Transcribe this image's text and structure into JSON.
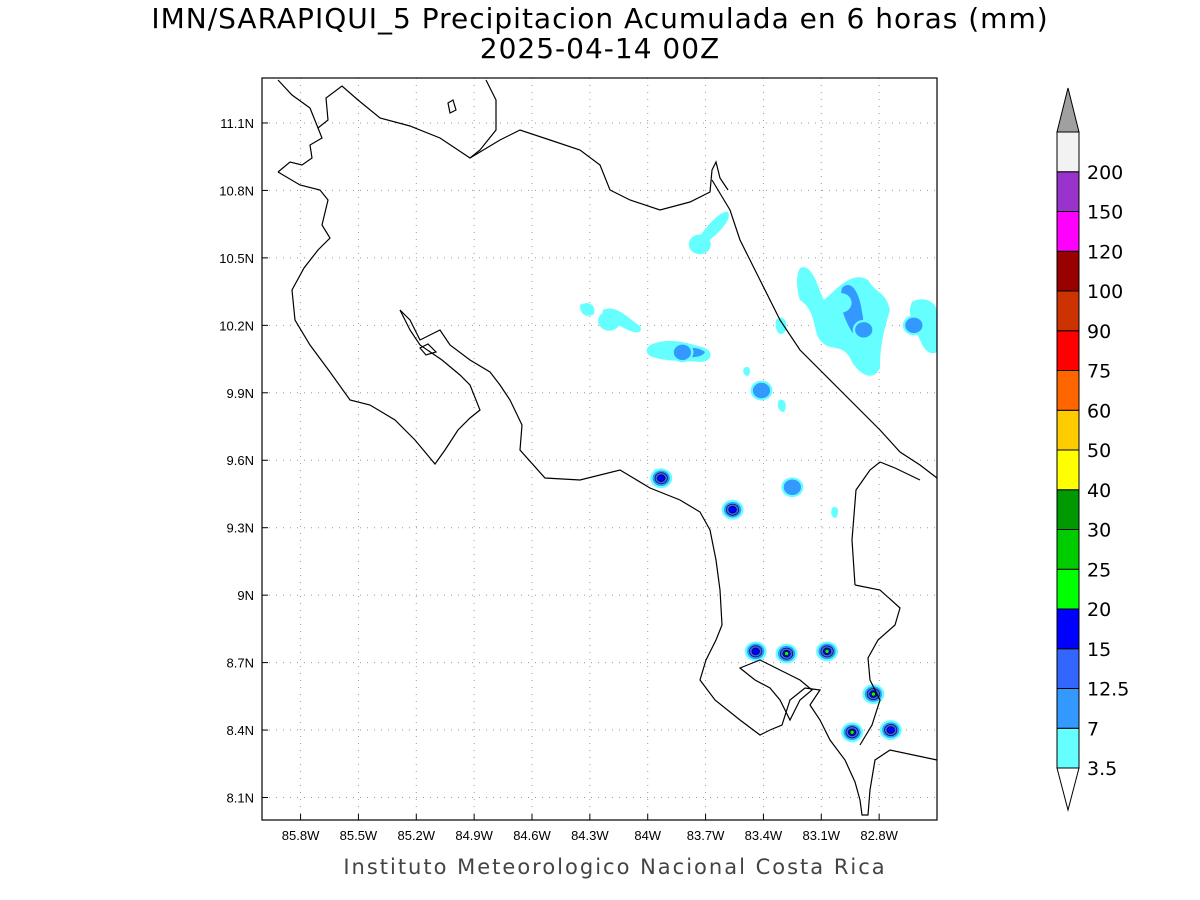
{
  "title": {
    "line1": "IMN/SARAPIQUI_5 Precipitacion Acumulada en 6 horas (mm)",
    "line2": "2025-04-14 00Z"
  },
  "footer": "Instituto Meteorologico Nacional Costa Rica",
  "map": {
    "lon_range": [
      -86.0,
      -82.5
    ],
    "lat_range": [
      8.0,
      11.3
    ],
    "grid": "dotted",
    "x_ticks": [
      {
        "lon": -85.8,
        "label": "85.8W"
      },
      {
        "lon": -85.5,
        "label": "85.5W"
      },
      {
        "lon": -85.2,
        "label": "85.2W"
      },
      {
        "lon": -84.9,
        "label": "84.9W"
      },
      {
        "lon": -84.6,
        "label": "84.6W"
      },
      {
        "lon": -84.3,
        "label": "84.3W"
      },
      {
        "lon": -84.0,
        "label": "84W"
      },
      {
        "lon": -83.7,
        "label": "83.7W"
      },
      {
        "lon": -83.4,
        "label": "83.4W"
      },
      {
        "lon": -83.1,
        "label": "83.1W"
      },
      {
        "lon": -82.8,
        "label": "82.8W"
      }
    ],
    "y_ticks": [
      {
        "lat": 11.1,
        "label": "11.1N"
      },
      {
        "lat": 10.8,
        "label": "10.8N"
      },
      {
        "lat": 10.5,
        "label": "10.5N"
      },
      {
        "lat": 10.2,
        "label": "10.2N"
      },
      {
        "lat": 9.9,
        "label": "9.9N"
      },
      {
        "lat": 9.6,
        "label": "9.6N"
      },
      {
        "lat": 9.3,
        "label": "9.3N"
      },
      {
        "lat": 9.0,
        "label": "9N"
      },
      {
        "lat": 8.7,
        "label": "8.7N"
      },
      {
        "lat": 8.4,
        "label": "8.4N"
      },
      {
        "lat": 8.1,
        "label": "8.1N"
      }
    ]
  },
  "colorbar": {
    "labels": [
      "3.5",
      "7",
      "12.5",
      "15",
      "20",
      "25",
      "30",
      "40",
      "50",
      "60",
      "75",
      "90",
      "100",
      "120",
      "150",
      "200"
    ],
    "colors": [
      "#66ffff",
      "#3399ff",
      "#3366ff",
      "#0000ff",
      "#00ff00",
      "#00cc00",
      "#009900",
      "#ffff00",
      "#ffcc00",
      "#ff6600",
      "#ff0000",
      "#cc3300",
      "#990000",
      "#ff00ff",
      "#9933cc",
      "#f2f2f2"
    ],
    "over_color": "#a0a0a0",
    "under_color": "#ffffff"
  },
  "precip_cells": [
    {
      "lon": -83.73,
      "lat": 10.56,
      "level": 0
    },
    {
      "lon": -84.2,
      "lat": 10.22,
      "level": 0
    },
    {
      "lon": -83.82,
      "lat": 10.08,
      "level": 1
    },
    {
      "lon": -83.41,
      "lat": 9.91,
      "level": 1
    },
    {
      "lon": -83.93,
      "lat": 9.52,
      "level": 3
    },
    {
      "lon": -83.56,
      "lat": 9.38,
      "level": 3
    },
    {
      "lon": -83.25,
      "lat": 9.48,
      "level": 1
    },
    {
      "lon": -83.0,
      "lat": 10.3,
      "level": 0
    },
    {
      "lon": -82.88,
      "lat": 10.18,
      "level": 1
    },
    {
      "lon": -82.62,
      "lat": 10.2,
      "level": 1
    },
    {
      "lon": -83.44,
      "lat": 8.75,
      "level": 3
    },
    {
      "lon": -83.28,
      "lat": 8.74,
      "level": 4
    },
    {
      "lon": -83.07,
      "lat": 8.75,
      "level": 4
    },
    {
      "lon": -82.83,
      "lat": 8.56,
      "level": 4
    },
    {
      "lon": -82.94,
      "lat": 8.39,
      "level": 4
    },
    {
      "lon": -82.74,
      "lat": 8.4,
      "level": 3
    }
  ]
}
